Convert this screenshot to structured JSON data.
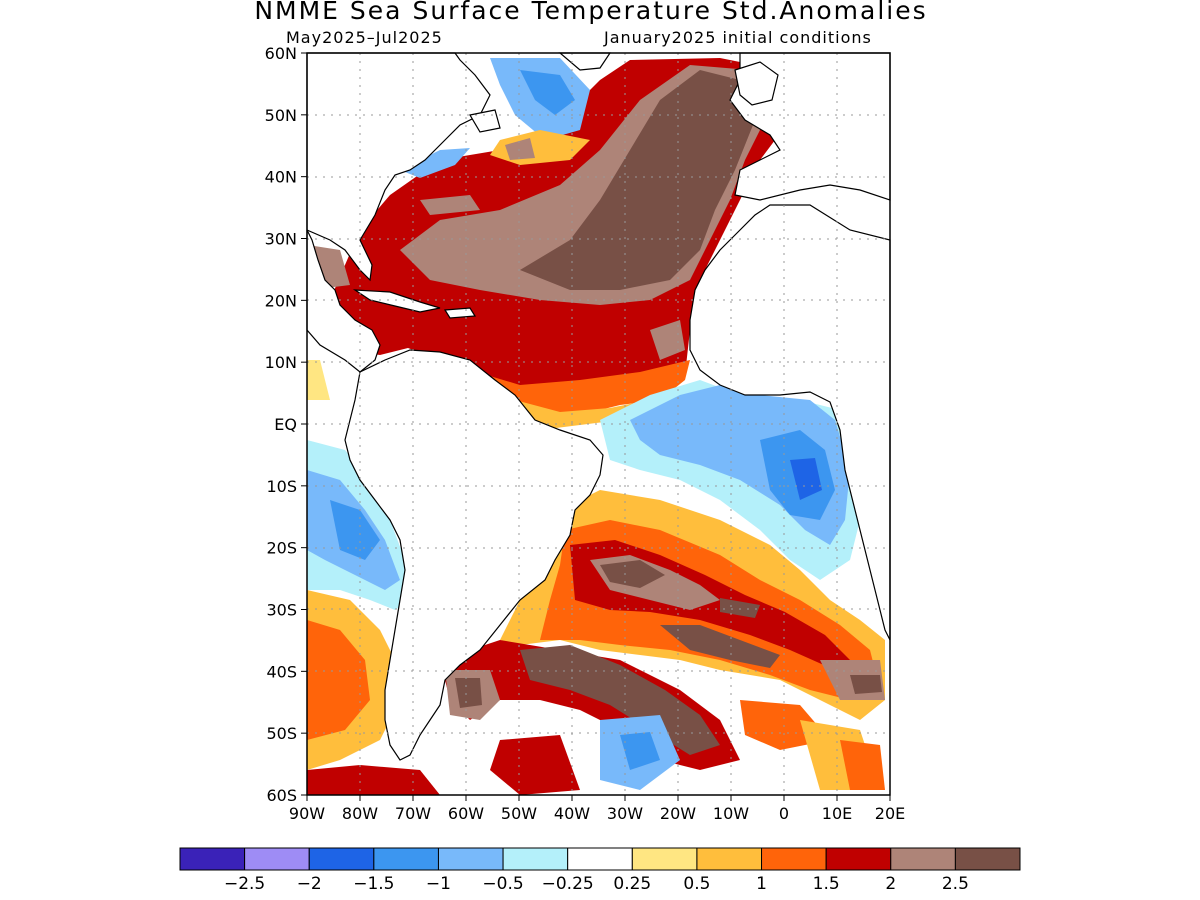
{
  "header": {
    "title": "NMME Sea Surface Temperature Std.Anomalies",
    "period": "May2025–Jul2025",
    "init": "January2025 initial conditions"
  },
  "axes": {
    "lat_labels": [
      "60N",
      "50N",
      "40N",
      "30N",
      "20N",
      "10N",
      "EQ",
      "10S",
      "20S",
      "30S",
      "40S",
      "50S",
      "60S"
    ],
    "lat_values": [
      60,
      50,
      40,
      30,
      20,
      10,
      0,
      -10,
      -20,
      -30,
      -40,
      -50,
      -60
    ],
    "lon_labels": [
      "90W",
      "80W",
      "70W",
      "60W",
      "50W",
      "40W",
      "30W",
      "20W",
      "10W",
      "0",
      "10E",
      "20E"
    ],
    "lon_values": [
      -90,
      -80,
      -70,
      -60,
      -50,
      -40,
      -30,
      -20,
      -10,
      0,
      10,
      20
    ],
    "lon_range": [
      -90,
      20
    ],
    "lat_range": [
      -60,
      60
    ]
  },
  "colorbar": {
    "colors": [
      "#3a22b8",
      "#9e8cf5",
      "#1e64e6",
      "#3c96f0",
      "#78b9fa",
      "#b4f0fa",
      "#ffffff",
      "#ffe682",
      "#ffbe3c",
      "#ff640a",
      "#c00000",
      "#ae8478",
      "#785046"
    ],
    "labels": [
      "−2.5",
      "−2",
      "−1.5",
      "−1",
      "−0.5",
      "−0.25",
      "0.25",
      "0.5",
      "1",
      "1.5",
      "2",
      "2.5"
    ]
  },
  "colors": {
    "land": "#ffffff",
    "coast": "#000000",
    "grid": "#999999"
  }
}
